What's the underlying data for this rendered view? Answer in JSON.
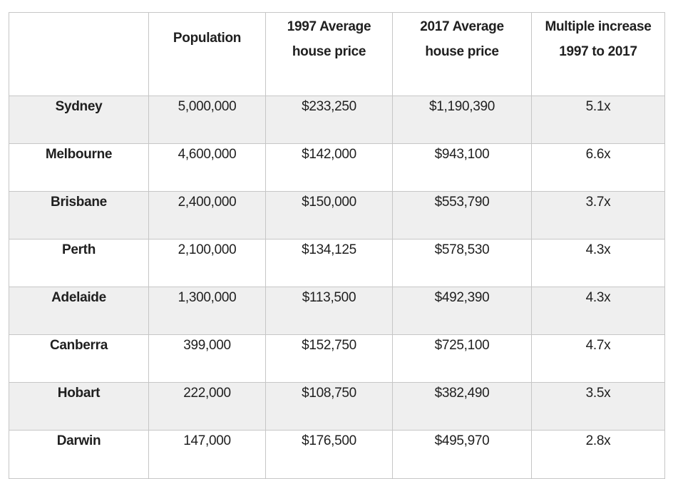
{
  "table": {
    "headers": [
      "",
      "Population",
      [
        "1997 Average",
        "house price"
      ],
      [
        "2017 Average",
        "house price"
      ],
      [
        "Multiple increase",
        "1997 to 2017"
      ]
    ],
    "rows": [
      {
        "city": "Sydney",
        "population": "5,000,000",
        "price_1997": "$233,250",
        "price_2017": "$1,190,390",
        "multiple": "5.1x"
      },
      {
        "city": "Melbourne",
        "population": "4,600,000",
        "price_1997": "$142,000",
        "price_2017": "$943,100",
        "multiple": "6.6x"
      },
      {
        "city": "Brisbane",
        "population": "2,400,000",
        "price_1997": "$150,000",
        "price_2017": "$553,790",
        "multiple": "3.7x"
      },
      {
        "city": "Perth",
        "population": "2,100,000",
        "price_1997": "$134,125",
        "price_2017": "$578,530",
        "multiple": "4.3x"
      },
      {
        "city": "Adelaide",
        "population": "1,300,000",
        "price_1997": "$113,500",
        "price_2017": "$492,390",
        "multiple": "4.3x"
      },
      {
        "city": "Canberra",
        "population": "399,000",
        "price_1997": "$152,750",
        "price_2017": "$725,100",
        "multiple": "4.7x"
      },
      {
        "city": "Hobart",
        "population": "222,000",
        "price_1997": "$108,750",
        "price_2017": "$382,490",
        "multiple": "3.5x"
      },
      {
        "city": "Darwin",
        "population": "147,000",
        "price_1997": "$176,500",
        "price_2017": "$495,970",
        "multiple": "2.8x"
      }
    ]
  },
  "colors": {
    "stripe": "#efefef",
    "border": "#c6c6c6",
    "text": "#1f1f1f"
  }
}
